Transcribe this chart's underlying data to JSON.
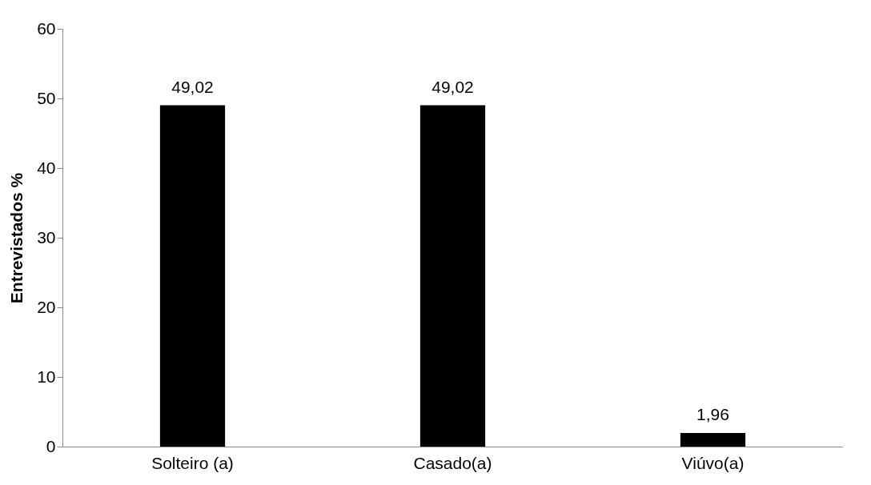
{
  "chart_data": {
    "type": "bar",
    "ylabel": "Entrevistados %",
    "categories": [
      "Solteiro (a)",
      "Casado(a)",
      "Viúvo(a)"
    ],
    "values": [
      49.02,
      49.02,
      1.96
    ],
    "value_labels": [
      "49,02",
      "49,02",
      "1,96"
    ],
    "color": "#000000",
    "ylim": [
      0,
      60
    ],
    "yticks": [
      0,
      10,
      20,
      30,
      40,
      50,
      60
    ],
    "grid": false
  }
}
